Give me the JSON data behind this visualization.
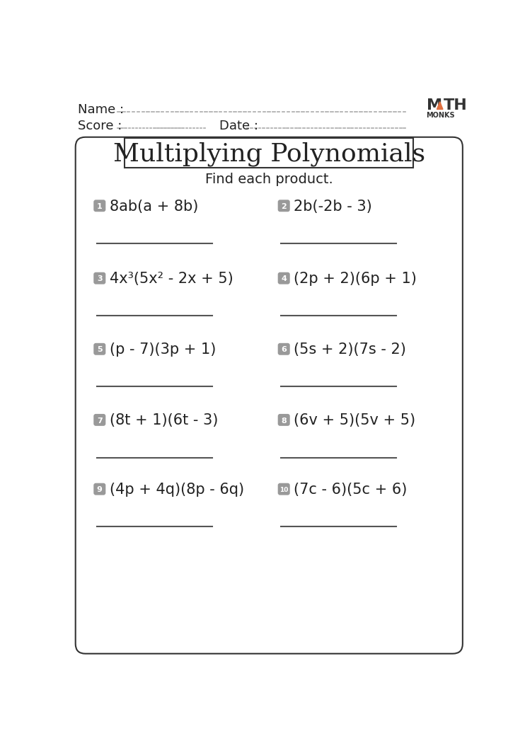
{
  "title": "Multiplying Polynomials",
  "subtitle": "Find each product.",
  "name_label": "Name :",
  "score_label": "Score :",
  "date_label": "Date :",
  "problems": [
    {
      "num": "1",
      "expr": "8ab(a + 8b)"
    },
    {
      "num": "2",
      "expr": "2b(-2b - 3)"
    },
    {
      "num": "3",
      "expr": "4x³(5x² - 2x + 5)"
    },
    {
      "num": "4",
      "expr": "(2p + 2)(6p + 1)"
    },
    {
      "num": "5",
      "expr": "(p - 7)(3p + 1)"
    },
    {
      "num": "6",
      "expr": "(5s + 2)(7s - 2)"
    },
    {
      "num": "7",
      "expr": "(8t + 1)(6t - 3)"
    },
    {
      "num": "8",
      "expr": "(6v + 5)(5v + 5)"
    },
    {
      "num": "9",
      "expr": "(4p + 4q)(8p - 6q)"
    },
    {
      "num": "10",
      "expr": "(7c - 6)(5c + 6)"
    }
  ],
  "bg_color": "#ffffff",
  "box_color": "#333333",
  "num_badge_color": "#999999",
  "num_badge_text_color": "#ffffff",
  "text_color": "#222222",
  "line_color": "#555555",
  "dash_color": "#aaaaaa",
  "logo_M_color": "#333333",
  "logo_A_color": "#e07040",
  "logo_TH_color": "#333333",
  "logo_MONKS_color": "#333333"
}
